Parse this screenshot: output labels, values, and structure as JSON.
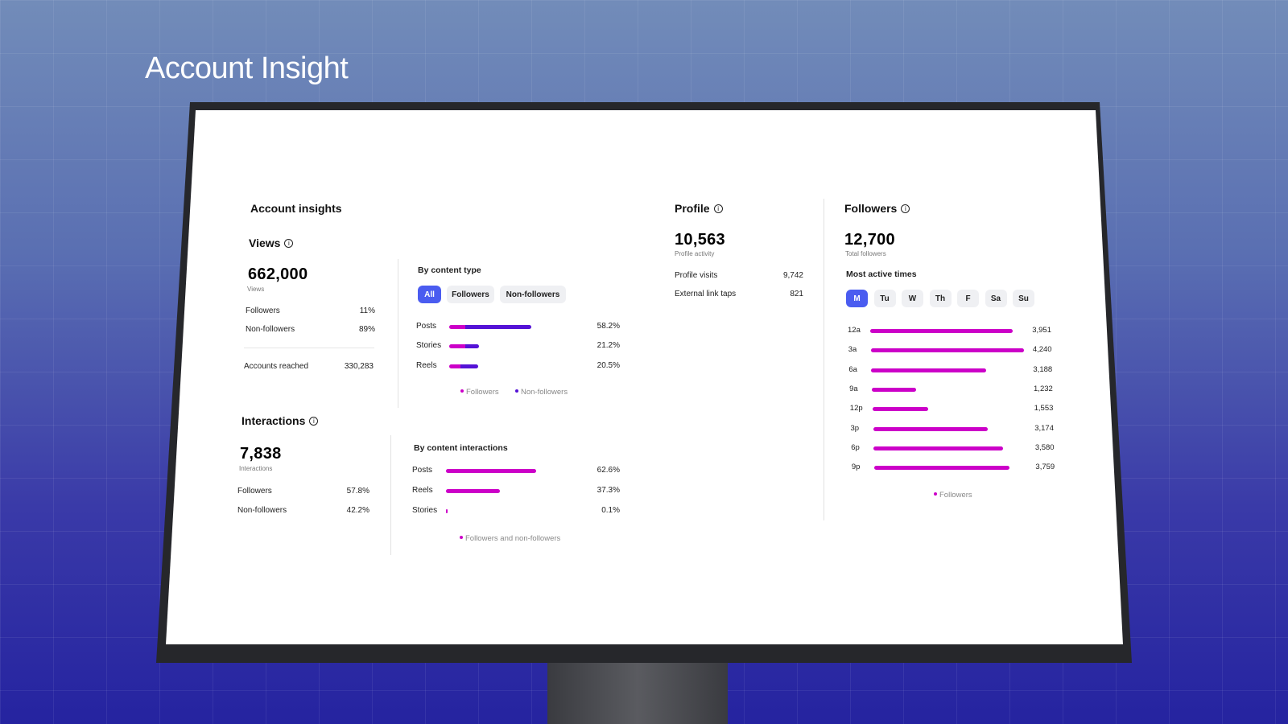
{
  "page_title": "Account Insight",
  "colors": {
    "followers": "#cc00c8",
    "non_followers": "#5412d6",
    "chip_active": "#4a5cf0"
  },
  "account_insights": {
    "title": "Account insights"
  },
  "views": {
    "title": "Views",
    "value": "662,000",
    "caption": "Views",
    "rows": [
      {
        "label": "Followers",
        "value": "11%"
      },
      {
        "label": "Non-followers",
        "value": "89%"
      }
    ],
    "reached": {
      "label": "Accounts reached",
      "value": "330,283"
    },
    "by_type": {
      "title": "By content type",
      "filters": [
        "All",
        "Followers",
        "Non-followers"
      ],
      "active_filter": "All",
      "items": [
        {
          "label": "Posts",
          "pct": "58.2%",
          "total": 58.2,
          "followers_share": 0.2
        },
        {
          "label": "Stories",
          "pct": "21.2%",
          "total": 21.2,
          "followers_share": 0.55
        },
        {
          "label": "Reels",
          "pct": "20.5%",
          "total": 20.5,
          "followers_share": 0.4
        }
      ],
      "legend": [
        "Followers",
        "Non-followers"
      ]
    }
  },
  "interactions": {
    "title": "Interactions",
    "value": "7,838",
    "caption": "Interactions",
    "rows": [
      {
        "label": "Followers",
        "value": "57.8%"
      },
      {
        "label": "Non-followers",
        "value": "42.2%"
      }
    ],
    "by_content": {
      "title": "By content interactions",
      "items": [
        {
          "label": "Posts",
          "pct": "62.6%",
          "total": 62.6
        },
        {
          "label": "Reels",
          "pct": "37.3%",
          "total": 37.3
        },
        {
          "label": "Stories",
          "pct": "0.1%",
          "total": 0.1
        }
      ],
      "legend": "Followers and non-followers"
    }
  },
  "profile": {
    "title": "Profile",
    "value": "10,563",
    "caption": "Profile activity",
    "rows": [
      {
        "label": "Profile visits",
        "value": "9,742"
      },
      {
        "label": "External link taps",
        "value": "821"
      }
    ]
  },
  "followers": {
    "title": "Followers",
    "value": "12,700",
    "caption": "Total followers",
    "active_times_title": "Most active times",
    "days": [
      "M",
      "Tu",
      "W",
      "Th",
      "F",
      "Sa",
      "Su"
    ],
    "active_day": "M",
    "hours": [
      {
        "label": "12a",
        "value": "3,951",
        "n": 3951
      },
      {
        "label": "3a",
        "value": "4,240",
        "n": 4240
      },
      {
        "label": "6a",
        "value": "3,188",
        "n": 3188
      },
      {
        "label": "9a",
        "value": "1,232",
        "n": 1232
      },
      {
        "label": "12p",
        "value": "1,553",
        "n": 1553
      },
      {
        "label": "3p",
        "value": "3,174",
        "n": 3174
      },
      {
        "label": "6p",
        "value": "3,580",
        "n": 3580
      },
      {
        "label": "9p",
        "value": "3,759",
        "n": 3759
      }
    ],
    "legend": "Followers"
  }
}
